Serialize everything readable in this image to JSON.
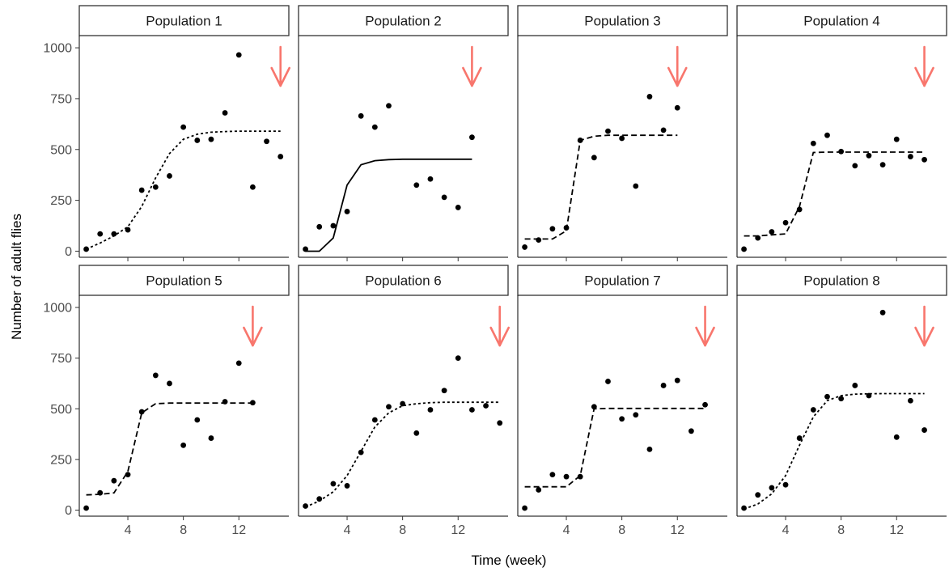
{
  "chart_data": {
    "type": "scatter",
    "layout": "facet-grid-2x4",
    "xlabel": "Time (week)",
    "ylabel": "Number of adult flies",
    "xlim": [
      0.5,
      15.6
    ],
    "ylim": [
      -30,
      1060
    ],
    "x_ticks": [
      4,
      8,
      12
    ],
    "y_ticks": [
      0,
      250,
      500,
      750,
      1000
    ],
    "grid": false,
    "marker_color": "#000000",
    "arrow_color": "#F8766D",
    "panels": [
      {
        "title": "Population 1",
        "points": [
          [
            1,
            10
          ],
          [
            2,
            85
          ],
          [
            3,
            85
          ],
          [
            4,
            105
          ],
          [
            5,
            300
          ],
          [
            6,
            315
          ],
          [
            7,
            370
          ],
          [
            8,
            610
          ],
          [
            9,
            545
          ],
          [
            10,
            550
          ],
          [
            11,
            680
          ],
          [
            12,
            965
          ],
          [
            13,
            315
          ],
          [
            14,
            540
          ],
          [
            15,
            465
          ]
        ],
        "fit": {
          "style": "dotted",
          "points": [
            [
              1,
              10
            ],
            [
              2,
              40
            ],
            [
              3,
              75
            ],
            [
              4,
              120
            ],
            [
              5,
              220
            ],
            [
              6,
              360
            ],
            [
              7,
              480
            ],
            [
              8,
              550
            ],
            [
              9,
              575
            ],
            [
              10,
              585
            ],
            [
              11,
              588
            ],
            [
              12,
              590
            ],
            [
              13,
              590
            ],
            [
              14,
              590
            ],
            [
              15,
              590
            ]
          ]
        },
        "arrow_x": 15
      },
      {
        "title": "Population 2",
        "points": [
          [
            1,
            10
          ],
          [
            2,
            120
          ],
          [
            3,
            125
          ],
          [
            4,
            195
          ],
          [
            5,
            665
          ],
          [
            6,
            610
          ],
          [
            7,
            715
          ],
          [
            9,
            325
          ],
          [
            10,
            355
          ],
          [
            11,
            265
          ],
          [
            12,
            215
          ],
          [
            13,
            560
          ]
        ],
        "fit": {
          "style": "solid",
          "points": [
            [
              1,
              0
            ],
            [
              2,
              0
            ],
            [
              3,
              65
            ],
            [
              4,
              325
            ],
            [
              5,
              425
            ],
            [
              6,
              445
            ],
            [
              7,
              450
            ],
            [
              8,
              452
            ],
            [
              9,
              452
            ],
            [
              10,
              452
            ],
            [
              11,
              452
            ],
            [
              12,
              452
            ],
            [
              13,
              452
            ]
          ]
        },
        "arrow_x": 13
      },
      {
        "title": "Population 3",
        "points": [
          [
            1,
            20
          ],
          [
            2,
            55
          ],
          [
            3,
            110
          ],
          [
            4,
            115
          ],
          [
            5,
            545
          ],
          [
            6,
            460
          ],
          [
            7,
            590
          ],
          [
            8,
            555
          ],
          [
            9,
            320
          ],
          [
            10,
            760
          ],
          [
            11,
            595
          ],
          [
            12,
            705
          ]
        ],
        "fit": {
          "style": "dashed",
          "points": [
            [
              1,
              60
            ],
            [
              2,
              60
            ],
            [
              3,
              60
            ],
            [
              4,
              100
            ],
            [
              5,
              545
            ],
            [
              6,
              565
            ],
            [
              7,
              570
            ],
            [
              8,
              570
            ],
            [
              9,
              570
            ],
            [
              10,
              570
            ],
            [
              11,
              570
            ],
            [
              12,
              570
            ]
          ]
        },
        "arrow_x": 12
      },
      {
        "title": "Population 4",
        "points": [
          [
            1,
            10
          ],
          [
            2,
            65
          ],
          [
            3,
            95
          ],
          [
            4,
            140
          ],
          [
            5,
            205
          ],
          [
            6,
            530
          ],
          [
            7,
            570
          ],
          [
            8,
            490
          ],
          [
            9,
            420
          ],
          [
            10,
            470
          ],
          [
            11,
            425
          ],
          [
            12,
            550
          ],
          [
            13,
            465
          ],
          [
            14,
            450
          ]
        ],
        "fit": {
          "style": "dashed",
          "points": [
            [
              1,
              75
            ],
            [
              2,
              75
            ],
            [
              3,
              80
            ],
            [
              4,
              85
            ],
            [
              5,
              220
            ],
            [
              6,
              485
            ],
            [
              7,
              487
            ],
            [
              8,
              487
            ],
            [
              9,
              487
            ],
            [
              10,
              487
            ],
            [
              11,
              487
            ],
            [
              12,
              487
            ],
            [
              13,
              487
            ],
            [
              14,
              487
            ]
          ]
        },
        "arrow_x": 14
      },
      {
        "title": "Population 5",
        "points": [
          [
            1,
            10
          ],
          [
            2,
            85
          ],
          [
            3,
            145
          ],
          [
            4,
            175
          ],
          [
            5,
            485
          ],
          [
            6,
            665
          ],
          [
            7,
            625
          ],
          [
            8,
            320
          ],
          [
            9,
            445
          ],
          [
            10,
            355
          ],
          [
            11,
            535
          ],
          [
            12,
            725
          ],
          [
            13,
            530
          ]
        ],
        "fit": {
          "style": "dashed",
          "points": [
            [
              1,
              75
            ],
            [
              2,
              78
            ],
            [
              3,
              85
            ],
            [
              4,
              190
            ],
            [
              5,
              480
            ],
            [
              6,
              525
            ],
            [
              7,
              528
            ],
            [
              8,
              528
            ],
            [
              9,
              528
            ],
            [
              10,
              528
            ],
            [
              11,
              528
            ],
            [
              12,
              528
            ],
            [
              13,
              528
            ]
          ]
        },
        "arrow_x": 13
      },
      {
        "title": "Population 6",
        "points": [
          [
            1,
            20
          ],
          [
            2,
            55
          ],
          [
            3,
            130
          ],
          [
            4,
            120
          ],
          [
            5,
            285
          ],
          [
            6,
            445
          ],
          [
            7,
            510
          ],
          [
            8,
            525
          ],
          [
            9,
            380
          ],
          [
            10,
            495
          ],
          [
            11,
            590
          ],
          [
            12,
            750
          ],
          [
            13,
            495
          ],
          [
            14,
            515
          ],
          [
            15,
            430
          ]
        ],
        "fit": {
          "style": "dotted",
          "points": [
            [
              1,
              15
            ],
            [
              2,
              45
            ],
            [
              3,
              90
            ],
            [
              4,
              170
            ],
            [
              5,
              290
            ],
            [
              6,
              410
            ],
            [
              7,
              480
            ],
            [
              8,
              515
            ],
            [
              9,
              525
            ],
            [
              10,
              530
            ],
            [
              11,
              532
            ],
            [
              12,
              532
            ],
            [
              13,
              532
            ],
            [
              14,
              532
            ],
            [
              15,
              532
            ]
          ]
        },
        "arrow_x": 15
      },
      {
        "title": "Population 7",
        "points": [
          [
            1,
            10
          ],
          [
            2,
            100
          ],
          [
            3,
            175
          ],
          [
            4,
            165
          ],
          [
            5,
            165
          ],
          [
            6,
            510
          ],
          [
            7,
            635
          ],
          [
            8,
            450
          ],
          [
            9,
            470
          ],
          [
            10,
            300
          ],
          [
            11,
            615
          ],
          [
            12,
            640
          ],
          [
            13,
            390
          ],
          [
            14,
            520
          ]
        ],
        "fit": {
          "style": "dashed",
          "points": [
            [
              1,
              115
            ],
            [
              2,
              115
            ],
            [
              3,
              115
            ],
            [
              4,
              115
            ],
            [
              5,
              170
            ],
            [
              6,
              500
            ],
            [
              7,
              502
            ],
            [
              8,
              502
            ],
            [
              9,
              502
            ],
            [
              10,
              502
            ],
            [
              11,
              502
            ],
            [
              12,
              502
            ],
            [
              13,
              502
            ],
            [
              14,
              502
            ]
          ]
        },
        "arrow_x": 14
      },
      {
        "title": "Population 8",
        "points": [
          [
            1,
            10
          ],
          [
            2,
            75
          ],
          [
            3,
            110
          ],
          [
            4,
            125
          ],
          [
            5,
            355
          ],
          [
            6,
            495
          ],
          [
            7,
            560
          ],
          [
            8,
            550
          ],
          [
            9,
            615
          ],
          [
            10,
            565
          ],
          [
            11,
            975
          ],
          [
            12,
            360
          ],
          [
            13,
            540
          ],
          [
            14,
            395
          ]
        ],
        "fit": {
          "style": "dotted",
          "points": [
            [
              1,
              5
            ],
            [
              2,
              30
            ],
            [
              3,
              80
            ],
            [
              4,
              170
            ],
            [
              5,
              320
            ],
            [
              6,
              460
            ],
            [
              7,
              540
            ],
            [
              8,
              565
            ],
            [
              9,
              572
            ],
            [
              10,
              574
            ],
            [
              11,
              575
            ],
            [
              12,
              575
            ],
            [
              13,
              575
            ],
            [
              14,
              575
            ]
          ]
        },
        "arrow_x": 14
      }
    ]
  }
}
